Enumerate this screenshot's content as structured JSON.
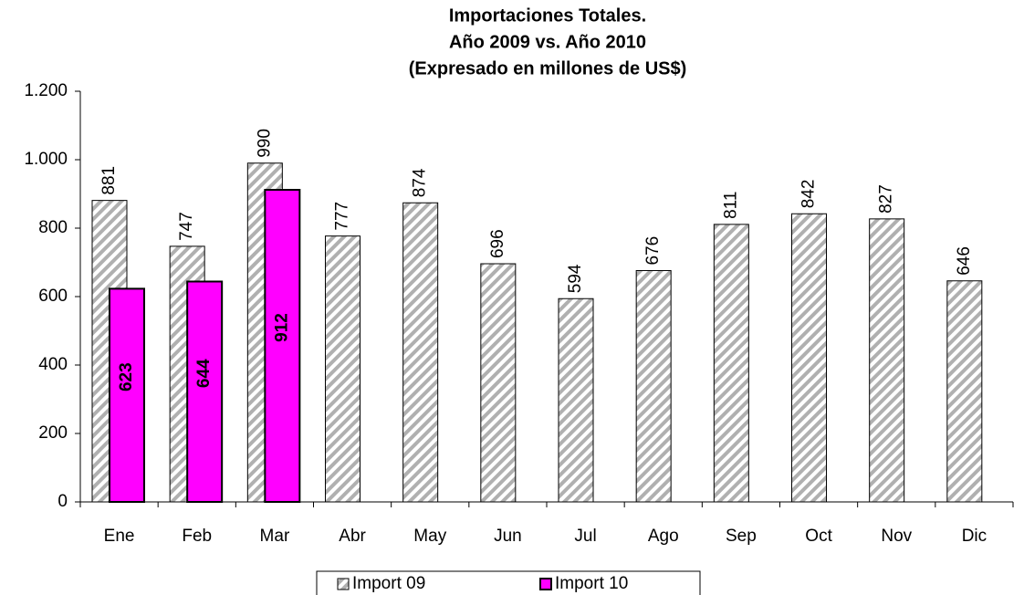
{
  "chart_data": {
    "type": "bar",
    "title": [
      "Importaciones Totales.",
      "Año 2009 vs. Año 2010",
      "(Expresado en millones de US$)"
    ],
    "categories": [
      "Ene",
      "Feb",
      "Mar",
      "Abr",
      "May",
      "Jun",
      "Jul",
      "Ago",
      "Sep",
      "Oct",
      "Nov",
      "Dic"
    ],
    "series": [
      {
        "name": "Import 09",
        "color": "#b0b0b0",
        "pattern": "hatch",
        "values": [
          881,
          747,
          990,
          777,
          874,
          696,
          594,
          676,
          811,
          842,
          827,
          646
        ]
      },
      {
        "name": "Import 10",
        "color": "#ff00ff",
        "values": [
          623,
          644,
          912,
          null,
          null,
          null,
          null,
          null,
          null,
          null,
          null,
          null
        ]
      }
    ],
    "ylim": [
      0,
      1200
    ],
    "yticks": [
      0,
      200,
      400,
      600,
      800,
      {
        "value": 1000,
        "label": "1.000"
      },
      {
        "value": 1200,
        "label": "1.200"
      }
    ],
    "grid": false,
    "legend": "bottom"
  }
}
